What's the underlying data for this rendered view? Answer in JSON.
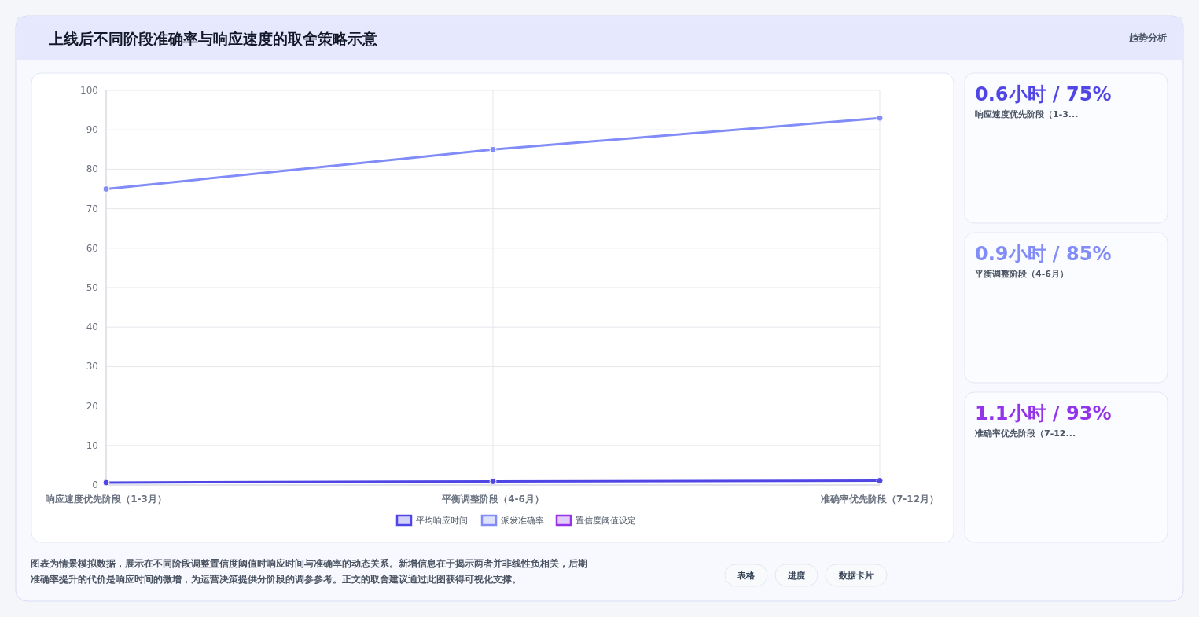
{
  "chart_data": [
    {
      "type": "line",
      "title": "上线后不同阶段准确率与响应速度的取舍策略示意",
      "categories": [
        "响应速度优先阶段（1-3月）",
        "平衡调整阶段（4-6月）",
        "准确率优先阶段（7-12月）"
      ],
      "series": [
        {
          "name": "平均响应时间",
          "color": "#4f46e5",
          "values": [
            0.6,
            0.9,
            1.1
          ]
        },
        {
          "name": "派发准确率",
          "color": "#818cf8",
          "values": [
            75,
            85,
            93
          ]
        },
        {
          "name": "置信度阈值设定",
          "color": "#9333ea",
          "values": [
            null,
            null,
            null
          ]
        }
      ],
      "ylim": [
        0,
        100
      ],
      "yticks": [
        0,
        10,
        20,
        30,
        40,
        50,
        60,
        70,
        80,
        90,
        100
      ],
      "grid": true,
      "legend": "bottom",
      "marker": "circle",
      "annotations": [
        "图表为情景模拟数据，展示在不同阶段调整置信度阈值时响应时间与准确率的动态关系。新增信息在于揭示两者并非线性负相关，后期准确率提升的代价是响应时间的微增，为运营决策提供分阶段的调参参考。正文的取舍建议通过此图获得可视化支撑。",
        "表格",
        "进度",
        "数据卡片"
      ]
    },
    {
      "type": "other",
      "title": "趋势分析",
      "annotations": [
        "0.6小时 / 75%",
        "响应速度优先阶段（1-3...",
        "0.9小时 / 85%",
        "平衡调整阶段（4-6月）",
        "1.1小时 / 93%",
        "准确率优先阶段（7-12..."
      ]
    }
  ]
}
